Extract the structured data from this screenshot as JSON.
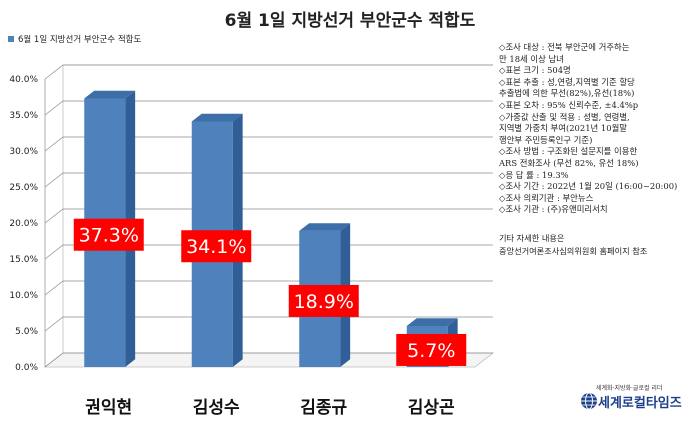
{
  "chart_data": {
    "type": "bar",
    "title": "6월 1일 지방선거 부안군수 적합도",
    "series": [
      {
        "name": "6월 1일 지방선거 부안군수 적합도",
        "values": [
          37.3,
          34.1,
          18.9,
          5.7
        ]
      }
    ],
    "categories": [
      "권익현",
      "김성수",
      "김종규",
      "김상곤"
    ],
    "data_labels": [
      "37.3%",
      "34.1%",
      "18.9%",
      "5.7%"
    ],
    "ylim": [
      0,
      40
    ],
    "yticks": [
      "0.0%",
      "5.0%",
      "10.0%",
      "15.0%",
      "20.0%",
      "25.0%",
      "30.0%",
      "35.0%",
      "40.0%"
    ],
    "legend": "top-left",
    "colors": {
      "bar": "#4f81bd",
      "label_bg": "#ff0000",
      "label_text": "#ffffff"
    }
  },
  "survey_notes": [
    "◇조사 대상 : 전북 부안군에 거주하는",
    "만 18세 이상 남녀",
    "◇표본 크기 : 504명",
    "◇표본 추출 : 성,연령,지역별 기준 할당",
    "추출법에 의한 무선(82%),유선(18%)",
    "◇표본 오차 : 95% 신뢰수준, ±4.4%p",
    "◇가중값 산출 및 적용 : 성별, 연령별,",
    "지역별 가중치 부여(2021년 10월말",
    "행안부 주민등록인구 기준)",
    "◇조사 방법 : 구조화된 설문지를 이용한",
    "ARS 전화조사 (무선 82%, 유선 18%)",
    "◇응 답 률 : 19.3%",
    "◇조사 기간 : 2022년 1월 20일 (16:00~20:00)",
    "◇조사 의뢰기관 : 부안뉴스",
    "◇조사 기관 : (주)유앤미리서치"
  ],
  "extra_notes": [
    "기타 자세한 내용은",
    "중앙선거여론조사심의위원회 홈페이지 참조"
  ],
  "logo": {
    "tagline": "세계화·지방화·글로컬 리더",
    "name": "세계로컬타임즈",
    "icon": "globe-icon"
  }
}
